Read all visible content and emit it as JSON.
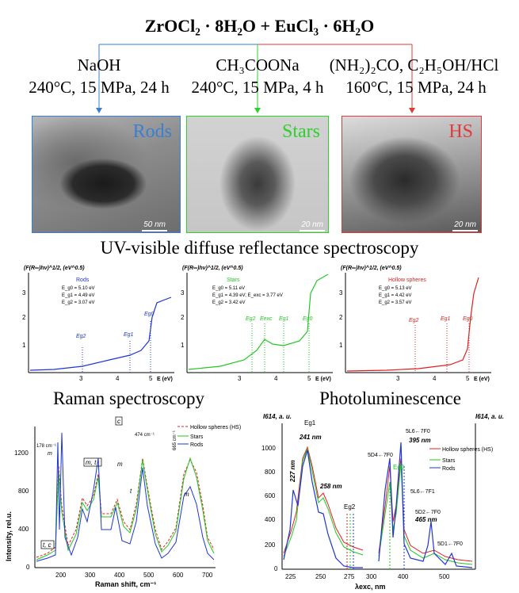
{
  "top_formula": "ZrOCl₂ · 8H₂O + EuCl₃ · 6H₂O",
  "routes": [
    {
      "reagent": "NaOH",
      "conditions": "240°C, 15 MPa, 24 h",
      "color": "#3a7fd0",
      "sample": "Rods",
      "scale": "50 nm"
    },
    {
      "reagent": "CH₃COONa",
      "conditions": "240°C, 15 MPa, 4 h",
      "color": "#2dd12d",
      "sample": "Stars",
      "scale": "20 nm"
    },
    {
      "reagent": "(NH₂)₂CO, C₂H₅OH/HCl",
      "conditions": "160°C, 15 MPa, 24 h",
      "color": "#e23a3a",
      "sample": "HS",
      "scale": "20 nm"
    }
  ],
  "uv": {
    "title": "UV-visible diffuse reflectance spectroscopy",
    "panels": [
      {
        "ylabel": "(F(R∞)hν)^1/2, (eV^0.5)",
        "legend": "Rods",
        "color": "#1f35d6",
        "lines": [
          "E_g0 = 5.10 eV",
          "E_g1 = 4.49 eV",
          "E_g2 = 3.07 eV"
        ],
        "markers": [
          "Eg2",
          "Eg1",
          "Eg0"
        ],
        "xlabel": "E (eV)",
        "xticks": [
          "3",
          "4",
          "5"
        ],
        "yticks": [
          "1",
          "2",
          "3"
        ]
      },
      {
        "ylabel": "(F(R∞)hν)^1/2, (eV^0.5)",
        "legend": "Stars",
        "color": "#22c822",
        "lines": [
          "E_g0 = 5.11 eV",
          "E_g1 = 4.39 eV; E_exc = 3.77 eV",
          "E_g2 = 3.42 eV"
        ],
        "markers": [
          "Eg2",
          "Eexc",
          "Eg1",
          "Eg0"
        ],
        "xlabel": "E (eV)",
        "xticks": [
          "3",
          "4",
          "5"
        ],
        "yticks": [
          "1",
          "2",
          "3"
        ]
      },
      {
        "ylabel": "(F(R∞)hν)^1/2, (eV^0.5)",
        "legend": "Hollow spheres",
        "color": "#e02020",
        "lines": [
          "E_g0 = 5.13 eV",
          "E_g1 = 4.42 eV",
          "E_g2 = 3.57 eV"
        ],
        "markers": [
          "Eg2",
          "Eg1",
          "Eg0"
        ],
        "xlabel": "E (eV)",
        "xticks": [
          "3",
          "4",
          "5"
        ],
        "yticks": [
          "1",
          "2",
          "3"
        ]
      }
    ]
  },
  "raman": {
    "title": "Raman spectroscopy",
    "ylabel": "Intensity, rel.u.",
    "xlabel": "Raman shift, cm⁻¹",
    "xticks": [
      "200",
      "300",
      "400",
      "500",
      "600",
      "700"
    ],
    "yticks": [
      "0",
      "400",
      "800",
      "1200"
    ],
    "legend": [
      "Hollow spheres (HS)",
      "Stars",
      "Rods"
    ],
    "annotations": [
      "c",
      "178 cm⁻¹",
      "m",
      "474 cm⁻¹",
      "665 cm⁻¹",
      "m, t",
      "m",
      "t",
      "t, c",
      "m"
    ]
  },
  "pl": {
    "title": "Photoluminescence",
    "ylabel_left": "I614, a. u.",
    "ylabel_right": "I614, a. u.",
    "xlabel": "λexc, nm",
    "xticks": [
      "225",
      "250",
      "275",
      "300",
      "400",
      "500"
    ],
    "yticks": [
      "0",
      "200",
      "400",
      "600",
      "800",
      "1000"
    ],
    "legend": [
      "Hollow spheres (HS)",
      "Stars",
      "Rods"
    ],
    "annotations": [
      "Eg1",
      "241 nm",
      "227 nm",
      "258 nm",
      "Eg2",
      "395 nm",
      "5L6←7F0",
      "Eg0",
      "5D4←7F0",
      "5L6←7F1",
      "5D2←7F0",
      "465 nm",
      "5D1←7F0"
    ]
  },
  "colors": {
    "hs": "#e02020",
    "stars": "#22c822",
    "rods": "#1f35d6"
  }
}
